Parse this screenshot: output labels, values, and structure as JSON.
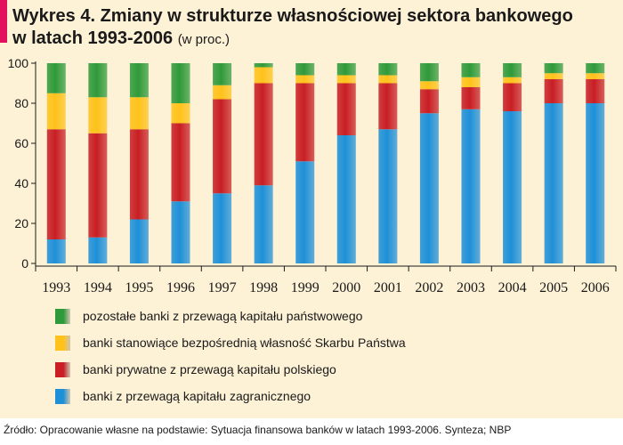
{
  "title": {
    "main": "Wykres 4. Zmiany w strukturze własnościowej sektora bankowego",
    "line2": "w latach 1993-2006",
    "unit": "(w proc.)"
  },
  "source": "Źródło: Opracowanie własne na podstawie: Sytuacja finansowa banków w latach 1993-2006. Synteza; NBP",
  "colors": {
    "background": "#fdf1d6",
    "accent": "#e2105d",
    "foreign": "#1e90d8",
    "polish_private": "#c81e24",
    "state_treasury": "#ffc21a",
    "state_other": "#2f9a3a"
  },
  "chart_data": {
    "type": "bar",
    "stacked": true,
    "categories": [
      "1993",
      "1994",
      "1995",
      "1996",
      "1997",
      "1998",
      "1999",
      "2000",
      "2001",
      "2002",
      "2003",
      "2004",
      "2005",
      "2006"
    ],
    "ylim": [
      0,
      100
    ],
    "yticks": [
      0,
      20,
      40,
      60,
      80,
      100
    ],
    "grid": false,
    "legend_position": "bottom",
    "series": [
      {
        "name": "banki z przewagą kapitału zagranicznego",
        "color": "#1e90d8",
        "values": [
          12,
          13,
          22,
          31,
          35,
          39,
          51,
          64,
          67,
          75,
          77,
          76,
          80,
          80
        ]
      },
      {
        "name": "banki prywatne z przewagą kapitału polskiego",
        "color": "#c81e24",
        "values": [
          55,
          52,
          45,
          39,
          47,
          51,
          39,
          26,
          23,
          12,
          11,
          14,
          12,
          12
        ]
      },
      {
        "name": "banki stanowiące bezpośrednią własność Skarbu Państwa",
        "color": "#ffc21a",
        "values": [
          18,
          18,
          16,
          10,
          7,
          8,
          4,
          4,
          4,
          4,
          5,
          3,
          3,
          3
        ]
      },
      {
        "name": "pozostałe banki z przewagą kapitału państwowego",
        "color": "#2f9a3a",
        "values": [
          15,
          17,
          17,
          20,
          11,
          2,
          6,
          6,
          6,
          9,
          7,
          7,
          5,
          5
        ]
      }
    ]
  }
}
